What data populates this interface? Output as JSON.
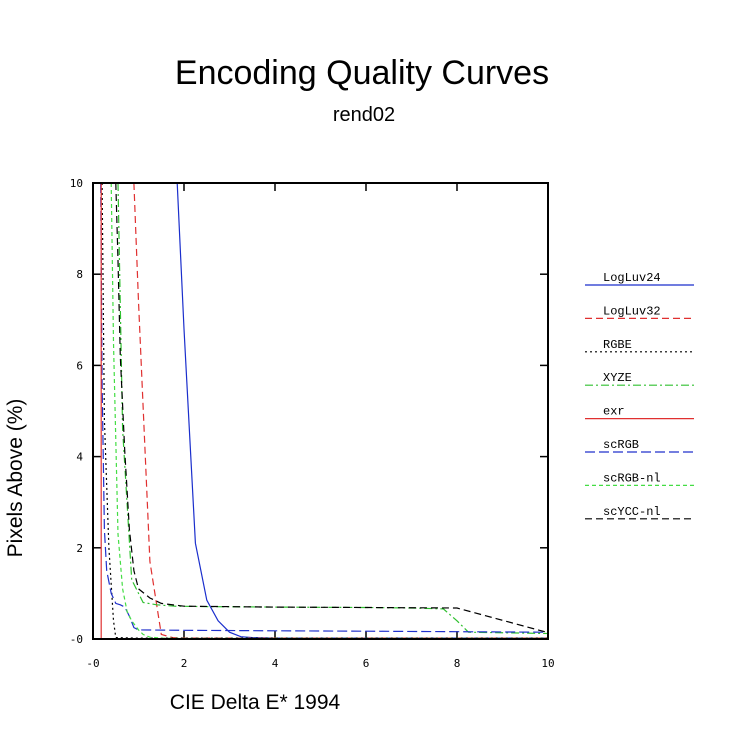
{
  "chart_data": {
    "type": "line",
    "title": "Encoding Quality Curves",
    "subtitle": "rend02",
    "xlabel": "CIE Delta E* 1994",
    "ylabel": "Pixels Above (%)",
    "xlim": [
      0,
      10
    ],
    "ylim": [
      0,
      10
    ],
    "xticks": [
      "-0",
      "2",
      "4",
      "6",
      "8",
      "10"
    ],
    "yticks": [
      "-0",
      "2",
      "4",
      "6",
      "8",
      "10"
    ],
    "grid": false,
    "legend_position": "right",
    "series": [
      {
        "name": "LogLuv24",
        "color": "#1a2ecc",
        "dash": "solid",
        "x": [
          1.85,
          2.0,
          2.25,
          2.5,
          2.75,
          3.0,
          3.25,
          3.5,
          4.0,
          6.0,
          8.0,
          10.0
        ],
        "y": [
          10.0,
          6.8,
          2.1,
          0.85,
          0.4,
          0.15,
          0.05,
          0.03,
          0.02,
          0.02,
          0.02,
          0.02
        ]
      },
      {
        "name": "LogLuv32",
        "color": "#e03030",
        "dash": "dashed",
        "x": [
          0.9,
          1.0,
          1.25,
          1.5,
          1.75,
          2.0,
          4.0,
          10.0
        ],
        "y": [
          10.0,
          7.4,
          1.7,
          0.1,
          0.03,
          0.02,
          0.02,
          0.02
        ]
      },
      {
        "name": "RGBE",
        "color": "#000000",
        "dash": "dotted",
        "x": [
          0.2,
          0.25,
          0.35,
          0.45,
          0.5,
          1.0,
          4.0,
          10.0
        ],
        "y": [
          10.0,
          4.8,
          2.0,
          0.4,
          0.03,
          0.02,
          0.02,
          0.02
        ]
      },
      {
        "name": "XYZE",
        "color": "#30c030",
        "dash": "dashdot",
        "x": [
          0.55,
          0.65,
          0.85,
          1.1,
          1.4,
          1.8,
          2.5,
          4.0,
          6.0,
          7.0,
          7.7,
          8.0,
          8.25,
          10.0
        ],
        "y": [
          10.0,
          4.6,
          1.3,
          0.8,
          0.75,
          0.72,
          0.71,
          0.7,
          0.69,
          0.68,
          0.66,
          0.4,
          0.15,
          0.12
        ]
      },
      {
        "name": "exr",
        "color": "#e03030",
        "dash": "solid",
        "x": [
          0.18,
          0.19,
          0.5,
          10.0
        ],
        "y": [
          0.0,
          0.0,
          0.0,
          0.0
        ]
      },
      {
        "name": "scRGB",
        "color": "#2030cc",
        "dash": "longdash",
        "x": [
          0.17,
          0.2,
          0.25,
          0.3,
          0.4,
          0.5,
          0.6,
          0.7,
          0.8,
          0.9,
          1.0,
          2.0,
          4.0,
          6.0,
          8.0,
          10.0
        ],
        "y": [
          10.0,
          5.6,
          2.4,
          1.5,
          1.0,
          0.78,
          0.75,
          0.7,
          0.5,
          0.25,
          0.2,
          0.19,
          0.18,
          0.17,
          0.16,
          0.15
        ]
      },
      {
        "name": "scRGB-nl",
        "color": "#44dd44",
        "dash": "shortdash",
        "x": [
          0.4,
          0.45,
          0.55,
          0.65,
          0.75,
          0.85,
          1.0,
          1.1,
          1.25,
          1.5,
          2.0,
          4.0,
          10.0
        ],
        "y": [
          10.0,
          6.5,
          2.3,
          1.1,
          0.6,
          0.4,
          0.2,
          0.1,
          0.04,
          0.02,
          0.01,
          0.01,
          0.01
        ]
      },
      {
        "name": "scYCC-nl",
        "color": "#000000",
        "dash": "dashed",
        "x": [
          0.5,
          0.55,
          0.6,
          0.7,
          0.8,
          0.9,
          1.0,
          1.25,
          1.5,
          2.0,
          4.0,
          6.0,
          8.0,
          10.0
        ],
        "y": [
          10.0,
          8.3,
          6.2,
          4.1,
          2.4,
          1.5,
          1.1,
          0.9,
          0.78,
          0.72,
          0.7,
          0.69,
          0.68,
          0.14
        ]
      }
    ]
  }
}
